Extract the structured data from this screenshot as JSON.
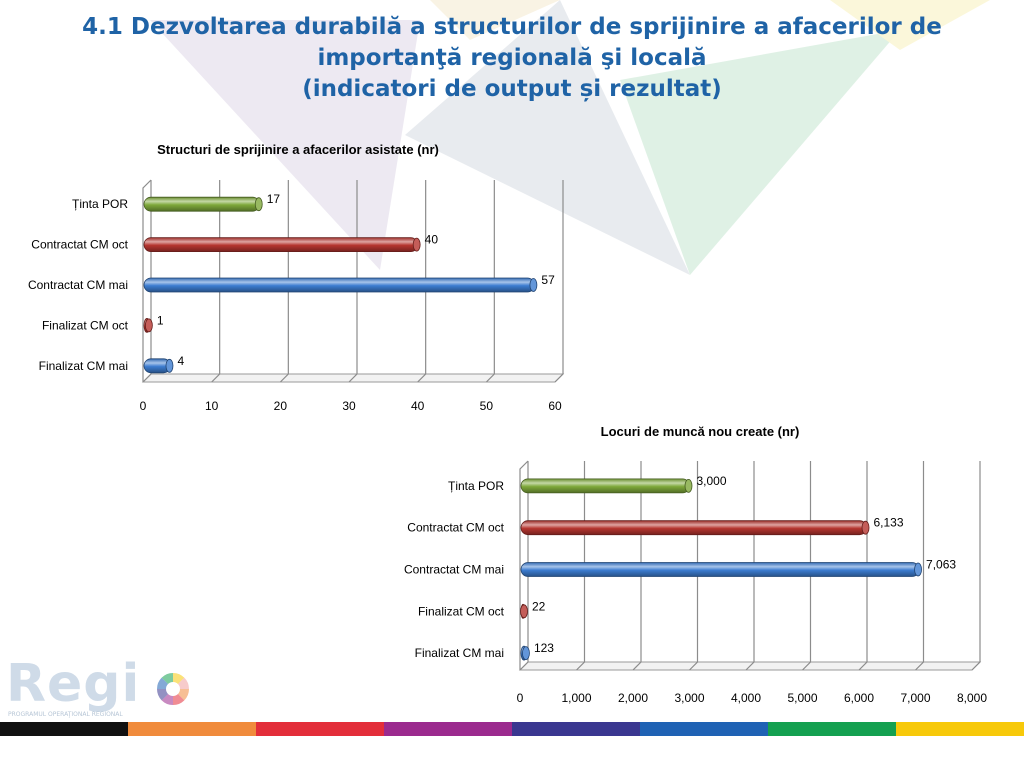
{
  "title": {
    "line1": "4.1 Dezvoltarea durabilă a structurilor de sprijinire a afacerilor de",
    "line2": "importanţă regională şi locală",
    "line3": "(indicatori de output și rezultat)"
  },
  "colors": {
    "title": "#1f63a6",
    "green": "#7ea83a",
    "red": "#b5352f",
    "blue": "#3c7cd0"
  },
  "chart_data": [
    {
      "type": "bar",
      "orientation": "horizontal",
      "title": "Structuri de sprijinire a afacerilor asistate (nr)",
      "categories": [
        "Ținta POR",
        "Contractat CM oct",
        "Contractat CM mai",
        "Finalizat CM oct",
        "Finalizat CM mai"
      ],
      "values": [
        17,
        40,
        57,
        1,
        4
      ],
      "value_labels": [
        "17",
        "40",
        "57",
        "1",
        "4"
      ],
      "bar_colors": [
        "green",
        "red",
        "blue",
        "red",
        "blue"
      ],
      "xlim": [
        0,
        60
      ],
      "ticks": [
        0,
        10,
        20,
        30,
        40,
        50,
        60
      ],
      "tick_labels": [
        "0",
        "10",
        "20",
        "30",
        "40",
        "50",
        "60"
      ],
      "grid": true
    },
    {
      "type": "bar",
      "orientation": "horizontal",
      "title": "Locuri de muncă nou create (nr)",
      "categories": [
        "Ținta POR",
        "Contractat CM oct",
        "Contractat CM mai",
        "Finalizat CM oct",
        "Finalizat CM mai"
      ],
      "values": [
        3000,
        6133,
        7063,
        22,
        123
      ],
      "value_labels": [
        "3,000",
        "6,133",
        "7,063",
        "22",
        "123"
      ],
      "bar_colors": [
        "green",
        "red",
        "blue",
        "red",
        "blue"
      ],
      "xlim": [
        0,
        8000
      ],
      "ticks": [
        0,
        1000,
        2000,
        3000,
        4000,
        5000,
        6000,
        7000,
        8000
      ],
      "tick_labels": [
        "0",
        "1,000",
        "2,000",
        "3,000",
        "4,000",
        "5,000",
        "6,000",
        "7,000",
        "8,000"
      ],
      "grid": true
    }
  ],
  "logo": {
    "word": "Regi",
    "subtitle": "PROGRAMUL OPERAŢIONAL REGIONAL"
  },
  "footer_colors": [
    "#111111",
    "#f08b3c",
    "#e32e3a",
    "#9b2a8e",
    "#3a3790",
    "#1f62b4",
    "#14a050",
    "#f7c90a"
  ]
}
